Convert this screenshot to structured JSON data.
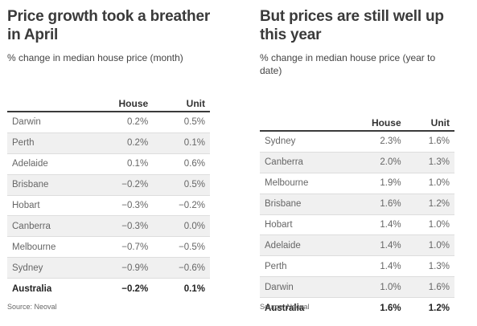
{
  "chart_data": [
    {
      "type": "table",
      "title": "Price growth took a breather in April",
      "subtitle": "% change in median house price (month)",
      "columns": [
        "",
        "House",
        "Unit"
      ],
      "rows": [
        {
          "city": "Darwin",
          "house": "0.2%",
          "unit": "0.5%"
        },
        {
          "city": "Perth",
          "house": "0.2%",
          "unit": "0.1%"
        },
        {
          "city": "Adelaide",
          "house": "0.1%",
          "unit": "0.6%"
        },
        {
          "city": "Brisbane",
          "house": "−0.2%",
          "unit": "0.5%"
        },
        {
          "city": "Hobart",
          "house": "−0.3%",
          "unit": "−0.2%"
        },
        {
          "city": "Canberra",
          "house": "−0.3%",
          "unit": "0.0%"
        },
        {
          "city": "Melbourne",
          "house": "−0.7%",
          "unit": "−0.5%"
        },
        {
          "city": "Sydney",
          "house": "−0.9%",
          "unit": "−0.6%"
        },
        {
          "city": "Australia",
          "house": "−0.2%",
          "unit": "0.1%"
        }
      ],
      "source": "Source: Neoval"
    },
    {
      "type": "table",
      "title": "But prices are still well up this year",
      "subtitle": "% change in median house price (year to date)",
      "columns": [
        "",
        "House",
        "Unit"
      ],
      "rows": [
        {
          "city": "Sydney",
          "house": "2.3%",
          "unit": "1.6%"
        },
        {
          "city": "Canberra",
          "house": "2.0%",
          "unit": "1.3%"
        },
        {
          "city": "Melbourne",
          "house": "1.9%",
          "unit": "1.0%"
        },
        {
          "city": "Brisbane",
          "house": "1.6%",
          "unit": "1.2%"
        },
        {
          "city": "Hobart",
          "house": "1.4%",
          "unit": "1.0%"
        },
        {
          "city": "Adelaide",
          "house": "1.4%",
          "unit": "1.0%"
        },
        {
          "city": "Perth",
          "house": "1.4%",
          "unit": "1.3%"
        },
        {
          "city": "Darwin",
          "house": "1.0%",
          "unit": "1.6%"
        },
        {
          "city": "Australia",
          "house": "1.6%",
          "unit": "1.2%"
        }
      ],
      "source": "Source: Neoval"
    }
  ]
}
